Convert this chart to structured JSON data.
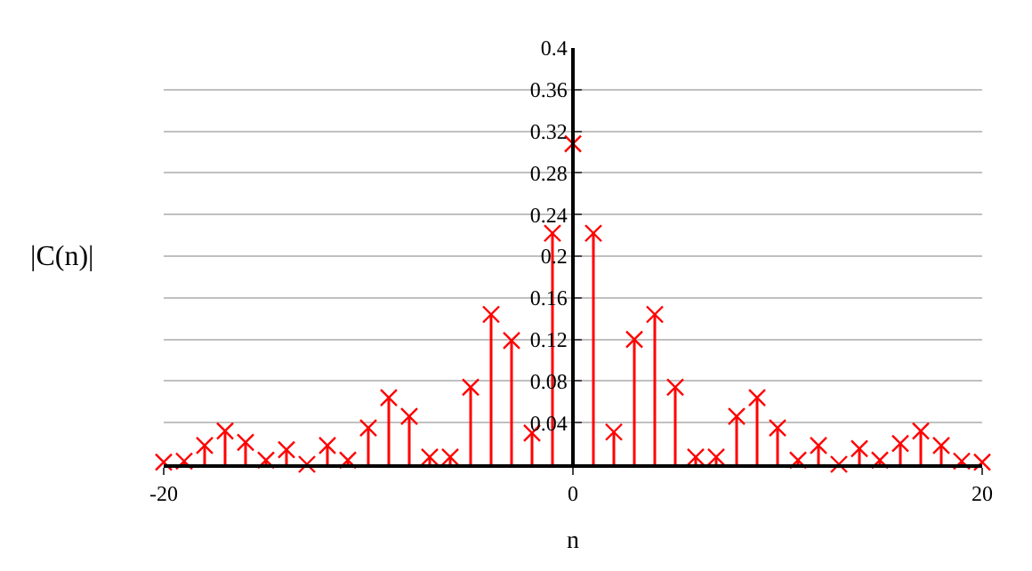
{
  "chart_data": {
    "type": "lollipop",
    "xlabel": "n",
    "ylabel": "|C(n)|",
    "x": [
      -20,
      -19,
      -18,
      -17,
      -16,
      -15,
      -14,
      -13,
      -12,
      -11,
      -10,
      -9,
      -8,
      -7,
      -6,
      -5,
      -4,
      -3,
      -2,
      -1,
      0,
      1,
      2,
      3,
      4,
      5,
      6,
      7,
      8,
      9,
      10,
      11,
      12,
      13,
      14,
      15,
      16,
      17,
      18,
      19,
      20
    ],
    "series": [
      {
        "color": "#ff0000",
        "values": [
          0.002,
          0.003,
          0.018,
          0.032,
          0.021,
          0.004,
          0.014,
          0.0,
          0.018,
          0.004,
          0.035,
          0.064,
          0.046,
          0.007,
          0.007,
          0.074,
          0.144,
          0.119,
          0.03,
          0.222,
          0.308,
          0.222,
          0.031,
          0.12,
          0.144,
          0.074,
          0.007,
          0.007,
          0.046,
          0.064,
          0.035,
          0.004,
          0.018,
          0.0,
          0.015,
          0.004,
          0.02,
          0.032,
          0.018,
          0.003,
          0.002
        ]
      }
    ],
    "xlim": [
      -20,
      20
    ],
    "xticks": [
      -20,
      0,
      20
    ],
    "ylim": [
      0,
      0.4
    ],
    "yticks": [
      0.04,
      0.08,
      0.12,
      0.16,
      0.2,
      0.24,
      0.28,
      0.32,
      0.36,
      0.4
    ],
    "grid": "y",
    "marker": "cross",
    "legend": false
  }
}
